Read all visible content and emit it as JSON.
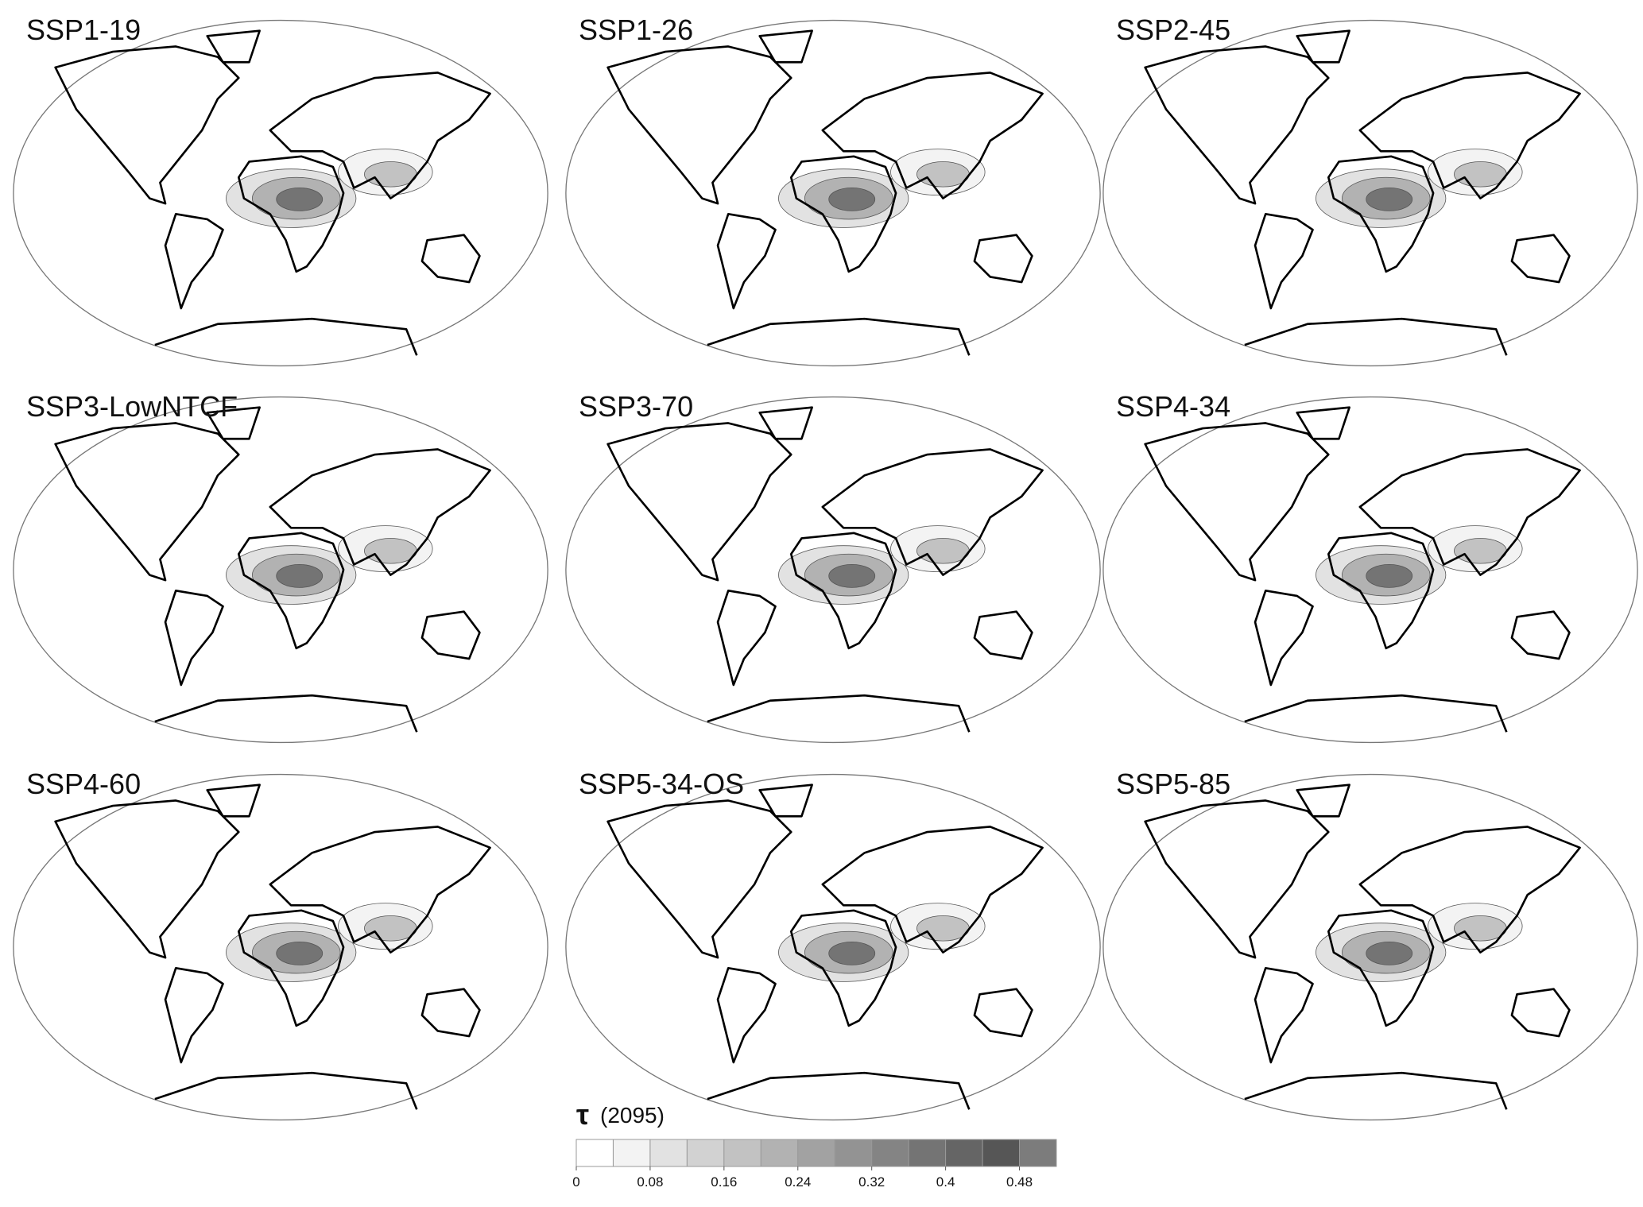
{
  "panels": [
    {
      "title": "SSP1-19"
    },
    {
      "title": "SSP1-26"
    },
    {
      "title": "SSP2-45"
    },
    {
      "title": "SSP3-LowNTCF"
    },
    {
      "title": "SSP3-70"
    },
    {
      "title": "SSP4-34"
    },
    {
      "title": "SSP4-60"
    },
    {
      "title": "SSP5-34-OS"
    },
    {
      "title": "SSP5-85"
    }
  ],
  "colorbar": {
    "symbol": "τ",
    "label": "(2095)",
    "levels": [
      0,
      0.04,
      0.08,
      0.12,
      0.16,
      0.2,
      0.24,
      0.28,
      0.32,
      0.36,
      0.4,
      0.44,
      0.48,
      0.52
    ],
    "colors": [
      "#ffffff",
      "#f3f3f3",
      "#e2e2e2",
      "#d2d2d2",
      "#c2c2c2",
      "#b2b2b2",
      "#a2a2a2",
      "#939393",
      "#848484",
      "#747474",
      "#656565",
      "#565656",
      "#7c7c7c"
    ],
    "ticks": [
      0,
      0.08,
      0.16,
      0.24,
      0.32,
      0.4,
      0.48
    ]
  }
}
